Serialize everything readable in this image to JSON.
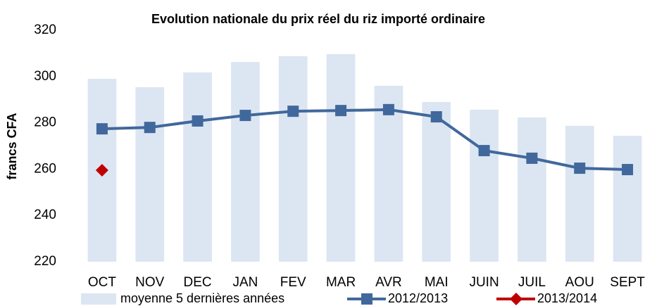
{
  "chart_data": {
    "type": "bar_line",
    "title": "Evolution nationale du prix réel du riz importé ordinaire",
    "y_label": "francs CFA",
    "categories": [
      "OCT",
      "NOV",
      "DEC",
      "JAN",
      "FEV",
      "MAR",
      "AVR",
      "MAI",
      "JUIN",
      "JUIL",
      "AOU",
      "SEPT"
    ],
    "series": [
      {
        "name": "moyenne 5 dernières années",
        "kind": "bar",
        "color": "#dce6f2",
        "values": [
          299,
          295.4,
          301.8,
          306.3,
          308.8,
          309.7,
          296,
          289,
          285.7,
          282.3,
          278.7,
          274.4
        ]
      },
      {
        "name": "2012/2013",
        "kind": "line",
        "marker": "square",
        "color": "#41689c",
        "values": [
          277.4,
          278,
          280.8,
          283.2,
          285,
          285.3,
          285.7,
          282.6,
          268,
          264.7,
          260.4,
          259.8
        ]
      },
      {
        "name": "2013/2014",
        "kind": "line",
        "marker": "diamond",
        "color": "#c00000",
        "values": [
          259.5,
          null,
          null,
          null,
          null,
          null,
          null,
          null,
          null,
          null,
          null,
          null
        ]
      }
    ],
    "ylim": [
      220,
      320
    ],
    "yticks": [
      220,
      240,
      260,
      280,
      300,
      320
    ],
    "grid": false
  }
}
